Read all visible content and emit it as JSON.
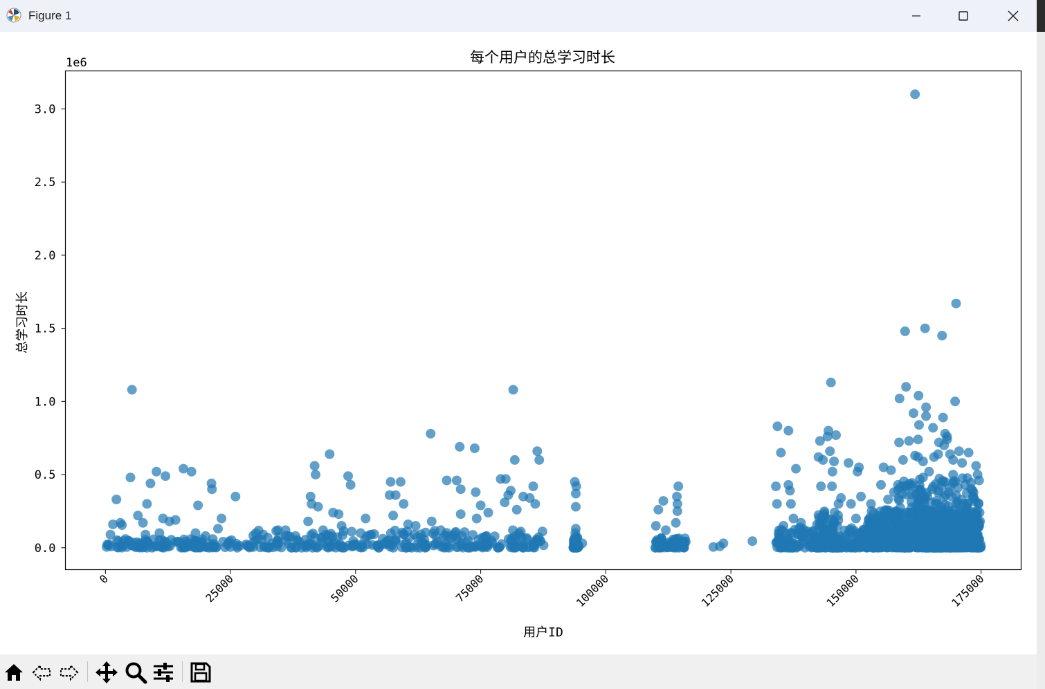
{
  "window": {
    "title": "Figure 1",
    "controls": [
      "minimize",
      "maximize",
      "close"
    ]
  },
  "toolbar": {
    "buttons": [
      {
        "name": "home-icon",
        "label": "Home"
      },
      {
        "name": "back-icon",
        "label": "Back"
      },
      {
        "name": "forward-icon",
        "label": "Forward"
      },
      {
        "name": "pan-icon",
        "label": "Pan"
      },
      {
        "name": "zoom-icon",
        "label": "Zoom"
      },
      {
        "name": "configure-subplots-icon",
        "label": "Configure subplots"
      },
      {
        "name": "save-icon",
        "label": "Save"
      }
    ]
  },
  "chart_data": {
    "type": "scatter",
    "title": "每个用户的总学习时长",
    "xlabel": "用户ID",
    "ylabel": "总学习时长",
    "y_offset_label": "1e6",
    "xlim": [
      -8000,
      183000
    ],
    "ylim": [
      -150000,
      3260000
    ],
    "x_ticks": [
      0,
      25000,
      50000,
      75000,
      100000,
      125000,
      150000,
      175000
    ],
    "x_tick_labels": [
      "0",
      "25000",
      "50000",
      "75000",
      "100000",
      "125000",
      "150000",
      "175000"
    ],
    "x_tick_rotation": 45,
    "y_ticks": [
      0,
      500000,
      1000000,
      1500000,
      2000000,
      2500000,
      3000000
    ],
    "y_tick_labels": [
      "0.0",
      "0.5",
      "1.0",
      "1.5",
      "2.0",
      "2.5",
      "3.0"
    ],
    "grid": false,
    "legend": "none",
    "marker_color": "#1f77b4",
    "marker_alpha": 0.7,
    "points": [
      [
        5300,
        1080000
      ],
      [
        2200,
        330000
      ],
      [
        5000,
        480000
      ],
      [
        6500,
        220000
      ],
      [
        7500,
        170000
      ],
      [
        8300,
        300000
      ],
      [
        9000,
        440000
      ],
      [
        10200,
        520000
      ],
      [
        11500,
        200000
      ],
      [
        12000,
        490000
      ],
      [
        12800,
        180000
      ],
      [
        14000,
        190000
      ],
      [
        15600,
        540000
      ],
      [
        17200,
        520000
      ],
      [
        18500,
        290000
      ],
      [
        21200,
        440000
      ],
      [
        21300,
        400000
      ],
      [
        22500,
        130000
      ],
      [
        23200,
        200000
      ],
      [
        26000,
        350000
      ],
      [
        1500,
        160000
      ],
      [
        3000,
        170000
      ],
      [
        3300,
        155000
      ],
      [
        8000,
        90000
      ],
      [
        10800,
        100000
      ],
      [
        18000,
        100000
      ],
      [
        20000,
        80000
      ],
      [
        4000,
        60000
      ],
      [
        1000,
        90000
      ],
      [
        41000,
        350000
      ],
      [
        41800,
        560000
      ],
      [
        42000,
        500000
      ],
      [
        42500,
        280000
      ],
      [
        40500,
        180000
      ],
      [
        41200,
        300000
      ],
      [
        44800,
        640000
      ],
      [
        45500,
        240000
      ],
      [
        46600,
        230000
      ],
      [
        47200,
        150000
      ],
      [
        48500,
        490000
      ],
      [
        49000,
        430000
      ],
      [
        51000,
        100000
      ],
      [
        52000,
        200000
      ],
      [
        43500,
        120000
      ],
      [
        44000,
        90000
      ],
      [
        34500,
        120000
      ],
      [
        36000,
        120000
      ],
      [
        38000,
        80000
      ],
      [
        30500,
        60000
      ],
      [
        57000,
        450000
      ],
      [
        58000,
        360000
      ],
      [
        59000,
        450000
      ],
      [
        59600,
        300000
      ],
      [
        57500,
        220000
      ],
      [
        60500,
        160000
      ],
      [
        56800,
        360000
      ],
      [
        65000,
        780000
      ],
      [
        65200,
        180000
      ],
      [
        68200,
        460000
      ],
      [
        70200,
        460000
      ],
      [
        70800,
        690000
      ],
      [
        71000,
        400000
      ],
      [
        71000,
        230000
      ],
      [
        73800,
        680000
      ],
      [
        74000,
        380000
      ],
      [
        74200,
        200000
      ],
      [
        75000,
        290000
      ],
      [
        76500,
        240000
      ],
      [
        79000,
        470000
      ],
      [
        80000,
        470000
      ],
      [
        79800,
        310000
      ],
      [
        80500,
        360000
      ],
      [
        81000,
        390000
      ],
      [
        81500,
        1080000
      ],
      [
        81800,
        600000
      ],
      [
        82200,
        260000
      ],
      [
        83500,
        350000
      ],
      [
        84800,
        340000
      ],
      [
        85500,
        420000
      ],
      [
        85900,
        300000
      ],
      [
        86300,
        660000
      ],
      [
        86700,
        600000
      ],
      [
        62000,
        150000
      ],
      [
        67000,
        120000
      ],
      [
        93800,
        450000
      ],
      [
        94000,
        370000
      ],
      [
        94100,
        420000
      ],
      [
        94000,
        280000
      ],
      [
        93900,
        100000
      ],
      [
        95300,
        30000
      ],
      [
        94000,
        130000
      ],
      [
        94000,
        50000
      ],
      [
        110500,
        260000
      ],
      [
        111500,
        320000
      ],
      [
        114500,
        420000
      ],
      [
        114200,
        350000
      ],
      [
        114300,
        300000
      ],
      [
        114300,
        250000
      ],
      [
        114000,
        170000
      ],
      [
        110000,
        150000
      ],
      [
        112000,
        120000
      ],
      [
        111000,
        60000
      ],
      [
        115500,
        10000
      ],
      [
        121500,
        5000
      ],
      [
        122800,
        10000
      ],
      [
        123500,
        30000
      ],
      [
        129300,
        45000
      ],
      [
        134300,
        830000
      ],
      [
        134000,
        420000
      ],
      [
        134200,
        300000
      ],
      [
        135000,
        650000
      ],
      [
        136500,
        800000
      ],
      [
        136500,
        430000
      ],
      [
        136800,
        390000
      ],
      [
        137000,
        300000
      ],
      [
        138000,
        540000
      ],
      [
        137500,
        200000
      ],
      [
        139000,
        170000
      ],
      [
        135500,
        150000
      ],
      [
        142500,
        620000
      ],
      [
        142800,
        730000
      ],
      [
        143400,
        600000
      ],
      [
        144300,
        760000
      ],
      [
        144500,
        800000
      ],
      [
        145000,
        1130000
      ],
      [
        144800,
        660000
      ],
      [
        145300,
        520000
      ],
      [
        146000,
        770000
      ],
      [
        145600,
        590000
      ],
      [
        145200,
        420000
      ],
      [
        147000,
        340000
      ],
      [
        148500,
        580000
      ],
      [
        150300,
        520000
      ],
      [
        150600,
        550000
      ],
      [
        151000,
        350000
      ],
      [
        149000,
        300000
      ],
      [
        150000,
        200000
      ],
      [
        143000,
        420000
      ],
      [
        146500,
        300000
      ],
      [
        159800,
        1480000
      ],
      [
        160000,
        1100000
      ],
      [
        158700,
        1020000
      ],
      [
        161800,
        3100000
      ],
      [
        163800,
        1500000
      ],
      [
        162500,
        1040000
      ],
      [
        164000,
        960000
      ],
      [
        167200,
        1450000
      ],
      [
        170000,
        1670000
      ],
      [
        169800,
        1000000
      ],
      [
        161500,
        920000
      ],
      [
        162600,
        840000
      ],
      [
        162400,
        740000
      ],
      [
        164000,
        900000
      ],
      [
        165400,
        820000
      ],
      [
        166600,
        720000
      ],
      [
        167400,
        890000
      ],
      [
        167800,
        780000
      ],
      [
        168200,
        760000
      ],
      [
        168200,
        740000
      ],
      [
        169400,
        600000
      ],
      [
        158600,
        720000
      ],
      [
        159400,
        600000
      ],
      [
        160600,
        730000
      ],
      [
        161800,
        630000
      ],
      [
        162400,
        620000
      ],
      [
        163400,
        590000
      ],
      [
        163400,
        480000
      ],
      [
        164600,
        520000
      ],
      [
        165600,
        620000
      ],
      [
        166400,
        640000
      ],
      [
        167600,
        700000
      ],
      [
        168800,
        640000
      ],
      [
        169400,
        500000
      ],
      [
        170600,
        660000
      ],
      [
        171200,
        580000
      ],
      [
        171800,
        430000
      ],
      [
        172500,
        650000
      ],
      [
        173400,
        350000
      ],
      [
        174000,
        560000
      ],
      [
        174300,
        500000
      ],
      [
        174500,
        300000
      ],
      [
        174600,
        460000
      ],
      [
        174700,
        240000
      ],
      [
        174800,
        180000
      ],
      [
        155000,
        430000
      ],
      [
        155500,
        550000
      ],
      [
        157000,
        530000
      ],
      [
        157600,
        380000
      ],
      [
        156400,
        330000
      ],
      [
        158400,
        430000
      ],
      [
        160800,
        420000
      ],
      [
        162000,
        360000
      ],
      [
        163600,
        300000
      ],
      [
        165200,
        400000
      ],
      [
        166000,
        320000
      ],
      [
        167000,
        280000
      ],
      [
        168500,
        380000
      ],
      [
        170000,
        300000
      ],
      [
        171000,
        200000
      ],
      [
        172200,
        260000
      ],
      [
        173000,
        200000
      ],
      [
        173800,
        150000
      ],
      [
        153000,
        300000
      ],
      [
        154000,
        200000
      ],
      [
        156000,
        150000
      ],
      [
        158000,
        250000
      ],
      [
        160000,
        180000
      ],
      [
        162500,
        230000
      ],
      [
        165000,
        170000
      ],
      [
        167500,
        200000
      ],
      [
        170500,
        120000
      ],
      [
        172800,
        100000
      ],
      [
        174200,
        90000
      ],
      [
        151500,
        120000
      ]
    ],
    "clusters": [
      {
        "x_range": [
          0,
          27000
        ],
        "y_max": 60000,
        "n": 120
      },
      {
        "x_range": [
          28000,
          88000
        ],
        "y_max": 120000,
        "n": 260
      },
      {
        "x_range": [
          93500,
          94600
        ],
        "y_max": 90000,
        "n": 40
      },
      {
        "x_range": [
          109800,
          116000
        ],
        "y_max": 70000,
        "n": 60
      },
      {
        "x_range": [
          134000,
          152000
        ],
        "y_max": 140000,
        "n": 220
      },
      {
        "x_range": [
          142000,
          146500
        ],
        "y_max": 300000,
        "n": 80
      },
      {
        "x_range": [
          152000,
          175000
        ],
        "y_max": 260000,
        "n": 700
      },
      {
        "x_range": [
          158000,
          174500
        ],
        "y_max": 480000,
        "n": 260
      }
    ]
  }
}
